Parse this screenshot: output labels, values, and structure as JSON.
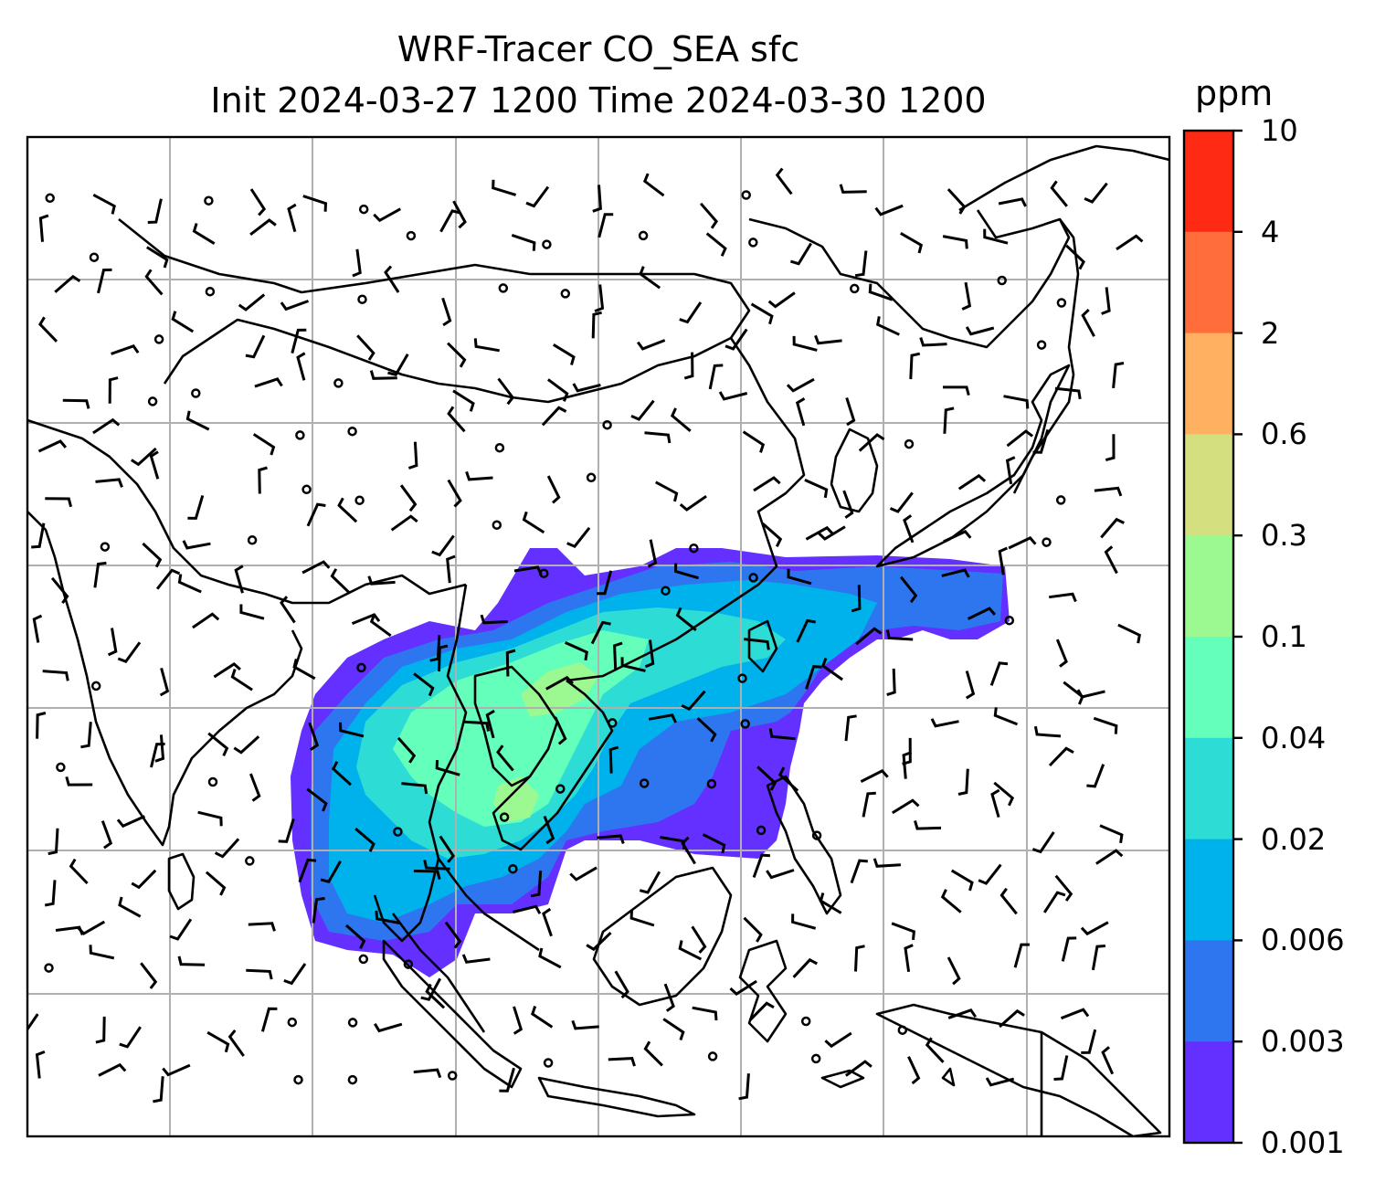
{
  "title": {
    "line1": "WRF-Tracer CO_SEA sfc",
    "line2": "Init 2024-03-27 1200 Time 2024-03-30 1200"
  },
  "colorbar": {
    "unit": "ppm",
    "ticks": [
      "10",
      "4",
      "2",
      "0.6",
      "0.3",
      "0.1",
      "0.04",
      "0.02",
      "0.006",
      "0.003",
      "0.001"
    ],
    "colors_top_to_bottom": [
      "#ff2a14",
      "#ff6e3a",
      "#ffb060",
      "#d4e080",
      "#9cf890",
      "#64ffba",
      "#2edcd6",
      "#00b2ec",
      "#2e76f0",
      "#6430ff"
    ]
  },
  "map": {
    "gridlines": true,
    "coastline_color": "#000000",
    "wind_barbs": true,
    "plume_colors": {
      "low": "#6430ff",
      "mid": "#2e76f0",
      "mid2": "#00b2ec",
      "high": "#2edcd6",
      "higher": "#64ffba",
      "peak": "#9cf890"
    }
  }
}
